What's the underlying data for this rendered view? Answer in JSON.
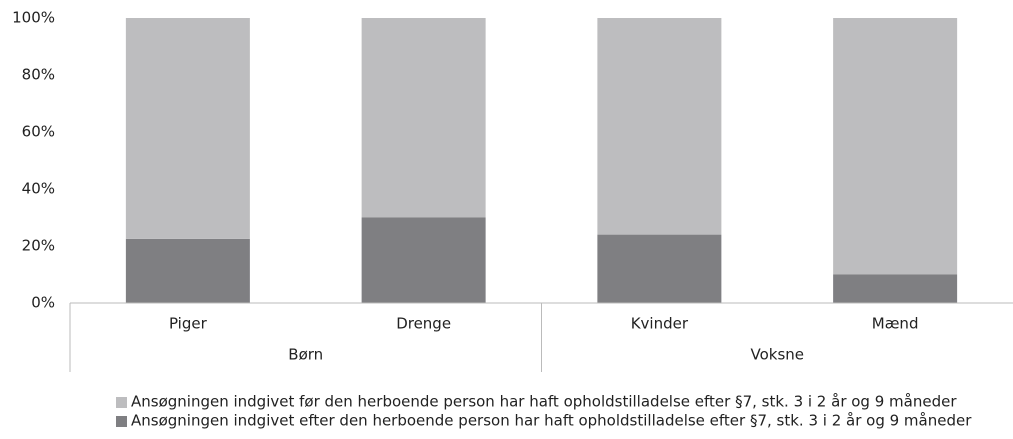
{
  "chart_data": {
    "type": "stacked_bar",
    "categories": [
      "Piger",
      "Drenge",
      "Kvinder",
      "Mænd"
    ],
    "groups": [
      {
        "label": "Børn",
        "size": 2
      },
      {
        "label": "Voksne",
        "size": 2
      }
    ],
    "series": [
      {
        "name": "Ansøgningen indgivet før den herboende person har haft opholdstilladelse efter §7, stk. 3 i 2 år og 9 måneder",
        "color": "#bdbdbf",
        "values": [
          77.5,
          70,
          76,
          90
        ]
      },
      {
        "name": "Ansøgningen indgivet efter den herboende person har haft opholdstilladelse efter §7, stk. 3 i 2 år og 9 måneder",
        "color": "#7f7f82",
        "values": [
          22.5,
          30,
          24,
          10
        ]
      }
    ],
    "ylim": [
      0,
      100
    ],
    "yticks": [
      {
        "value": 0,
        "label": "0%"
      },
      {
        "value": 20,
        "label": "20%"
      },
      {
        "value": 40,
        "label": "40%"
      },
      {
        "value": 60,
        "label": "60%"
      },
      {
        "value": 80,
        "label": "80%"
      },
      {
        "value": 100,
        "label": "100%"
      }
    ],
    "grid": false
  }
}
